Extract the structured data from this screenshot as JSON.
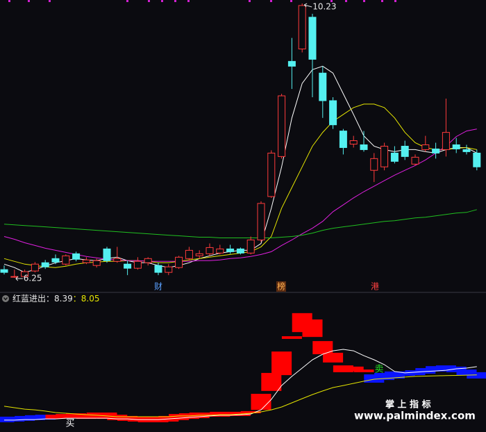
{
  "chart_data": [
    {
      "type": "candlestick",
      "categories": [
        null,
        null,
        null,
        null,
        null,
        null,
        null,
        null,
        null,
        null,
        null,
        null,
        null,
        null,
        null,
        null,
        null,
        null,
        null,
        null,
        null,
        null,
        null,
        null,
        null,
        null,
        null,
        null,
        null,
        null,
        null,
        null,
        null,
        null,
        null,
        null,
        null,
        null,
        null,
        null,
        null,
        null,
        null,
        null,
        null,
        null,
        null
      ],
      "open": [
        6.37,
        6.27,
        6.27,
        6.35,
        6.47,
        6.53,
        6.45,
        6.6,
        6.47,
        6.43,
        6.67,
        6.49,
        6.45,
        6.39,
        6.47,
        6.43,
        6.33,
        6.4,
        6.53,
        6.57,
        6.6,
        6.61,
        6.67,
        6.67,
        6.61,
        6.8,
        7.43,
        8.01,
        9.39,
        9.57,
        10.03,
        9.22,
        8.82,
        8.38,
        8.19,
        8.18,
        7.81,
        7.86,
        8.06,
        8.16,
        7.9,
        8.11,
        8.12,
        8.11,
        8.18,
        8.11,
        8.06
      ],
      "high": [
        6.43,
        6.37,
        6.37,
        6.48,
        6.51,
        6.59,
        6.59,
        6.63,
        6.55,
        6.53,
        6.7,
        6.7,
        6.5,
        6.55,
        6.55,
        6.47,
        6.45,
        6.57,
        6.7,
        6.65,
        6.75,
        6.73,
        6.73,
        6.69,
        6.85,
        7.36,
        8.1,
        8.92,
        9.73,
        10.23,
        10.08,
        9.32,
        8.87,
        8.41,
        8.31,
        8.38,
        8.06,
        8.21,
        8.16,
        8.24,
        8.04,
        8.31,
        8.21,
        8.85,
        8.28,
        8.18,
        8.11
      ],
      "low": [
        6.3,
        6.25,
        6.25,
        6.33,
        6.38,
        6.45,
        6.43,
        6.49,
        6.45,
        6.4,
        6.47,
        6.47,
        6.29,
        6.37,
        6.43,
        6.29,
        6.29,
        6.38,
        6.5,
        6.53,
        6.57,
        6.59,
        6.6,
        6.59,
        6.59,
        6.77,
        7.41,
        7.98,
        8.99,
        9.52,
        8.87,
        8.57,
        8.41,
        8.04,
        8.14,
        8.08,
        7.64,
        7.81,
        7.91,
        7.96,
        7.88,
        8.08,
        7.98,
        8.01,
        8.06,
        8.04,
        7.81
      ],
      "close": [
        6.33,
        6.27,
        6.34,
        6.45,
        6.41,
        6.48,
        6.57,
        6.52,
        6.51,
        6.5,
        6.5,
        6.53,
        6.39,
        6.49,
        6.53,
        6.33,
        6.41,
        6.55,
        6.65,
        6.6,
        6.69,
        6.67,
        6.63,
        6.61,
        6.8,
        7.33,
        8.06,
        8.89,
        9.32,
        10.2,
        9.42,
        8.82,
        8.47,
        8.14,
        8.24,
        8.11,
        7.98,
        8.16,
        7.94,
        8.01,
        8.0,
        8.18,
        8.06,
        8.36,
        8.12,
        8.08,
        7.86
      ],
      "up_color": "#ff3b3b",
      "down_color": "#54f0f0",
      "lines": [
        {
          "color": "#ffffff",
          "values": [
            6.45,
            6.4,
            6.33,
            6.37,
            6.42,
            6.47,
            6.5,
            6.53,
            6.51,
            6.5,
            6.53,
            6.55,
            6.5,
            6.47,
            6.47,
            6.43,
            6.4,
            6.43,
            6.47,
            6.53,
            6.57,
            6.61,
            6.63,
            6.65,
            6.65,
            6.75,
            7.26,
            7.86,
            8.57,
            9.07,
            9.27,
            9.32,
            9.22,
            8.92,
            8.62,
            8.31,
            8.16,
            8.11,
            8.08,
            8.11,
            8.11,
            8.08,
            8.06,
            8.11,
            8.14,
            8.14,
            8.06
          ]
        },
        {
          "color": "#e6e600",
          "values": [
            6.53,
            6.49,
            6.45,
            6.43,
            6.41,
            6.4,
            6.42,
            6.45,
            6.47,
            6.48,
            6.49,
            6.49,
            6.5,
            6.5,
            6.49,
            6.47,
            6.47,
            6.49,
            6.51,
            6.53,
            6.55,
            6.57,
            6.59,
            6.61,
            6.63,
            6.7,
            6.85,
            7.26,
            7.56,
            7.86,
            8.16,
            8.36,
            8.52,
            8.62,
            8.72,
            8.77,
            8.77,
            8.72,
            8.57,
            8.36,
            8.21,
            8.14,
            8.11,
            8.11,
            8.13,
            8.14,
            8.11
          ]
        },
        {
          "color": "#e020e0",
          "values": [
            6.85,
            6.81,
            6.76,
            6.72,
            6.68,
            6.65,
            6.62,
            6.59,
            6.56,
            6.54,
            6.52,
            6.51,
            6.5,
            6.5,
            6.49,
            6.49,
            6.49,
            6.49,
            6.49,
            6.5,
            6.5,
            6.51,
            6.53,
            6.54,
            6.56,
            6.59,
            6.63,
            6.72,
            6.8,
            6.89,
            6.97,
            7.07,
            7.21,
            7.31,
            7.41,
            7.5,
            7.58,
            7.66,
            7.74,
            7.81,
            7.88,
            7.96,
            8.06,
            8.16,
            8.3,
            8.38,
            8.41
          ]
        },
        {
          "color": "#20c020",
          "values": [
            7.03,
            7.02,
            7.01,
            7.0,
            6.99,
            6.98,
            6.97,
            6.96,
            6.95,
            6.94,
            6.93,
            6.92,
            6.91,
            6.9,
            6.89,
            6.88,
            6.87,
            6.86,
            6.85,
            6.84,
            6.84,
            6.83,
            6.83,
            6.83,
            6.83,
            6.83,
            6.83,
            6.84,
            6.85,
            6.87,
            6.9,
            6.94,
            6.97,
            6.99,
            7.01,
            7.03,
            7.05,
            7.07,
            7.08,
            7.1,
            7.12,
            7.13,
            7.15,
            7.17,
            7.19,
            7.2,
            7.24
          ]
        }
      ],
      "max_label": 10.23,
      "min_label": 6.25,
      "markers": [
        "财",
        "榜",
        "港"
      ],
      "ylim": [
        6.1,
        10.28
      ]
    },
    {
      "type": "block",
      "title": "红蓝进出",
      "separator": "：",
      "open": [
        6.33,
        6.33,
        6.36,
        6.39,
        6.41,
        6.24,
        6.27,
        6.27,
        6.24,
        6.27,
        6.24,
        6.19,
        6.16,
        6.13,
        6.1,
        6.1,
        6.13,
        6.19,
        6.24,
        6.27,
        6.33,
        6.33,
        6.36,
        6.36,
        6.47,
        6.61,
        7.39,
        8.04,
        9.53,
        9.81,
        9.61,
        8.9,
        8.56,
        8.16,
        8.21,
        8.16,
        8.07,
        8.13,
        8.19,
        8.19,
        8.24,
        8.33,
        8.41,
        8.44,
        8.39,
        8.27,
        8.16
      ],
      "close": [
        6.1,
        6.13,
        6.16,
        6.19,
        6.21,
        6.41,
        6.44,
        6.47,
        6.44,
        6.5,
        6.5,
        6.41,
        6.36,
        6.33,
        6.33,
        6.33,
        6.36,
        6.44,
        6.47,
        6.5,
        6.5,
        6.53,
        6.53,
        6.53,
        6.56,
        7.27,
        8.13,
        9.01,
        9.64,
        10.59,
        10.33,
        9.44,
        8.96,
        8.44,
        8.39,
        8.27,
        7.73,
        7.84,
        7.9,
        8.01,
        8.04,
        8.1,
        8.19,
        8.24,
        8.16,
        8.04,
        7.9
      ],
      "up_color": "#ff0000",
      "down_color": "#0a14ff",
      "lines": [
        {
          "color": "#ffffff",
          "values": [
            6.19,
            6.19,
            6.21,
            6.21,
            6.24,
            6.24,
            6.27,
            6.27,
            6.27,
            6.27,
            6.27,
            6.24,
            6.24,
            6.21,
            6.21,
            6.21,
            6.24,
            6.27,
            6.3,
            6.33,
            6.36,
            6.39,
            6.39,
            6.41,
            6.44,
            6.61,
            7.04,
            7.61,
            7.99,
            8.33,
            8.67,
            8.9,
            9.04,
            9.1,
            9.04,
            8.84,
            8.67,
            8.47,
            8.19,
            8.13,
            8.16,
            8.19,
            8.21,
            8.24,
            8.3,
            8.33,
            8.39
          ]
        },
        {
          "color": "#e6e600",
          "values": [
            6.76,
            6.7,
            6.64,
            6.61,
            6.56,
            6.5,
            6.47,
            6.44,
            6.41,
            6.39,
            6.36,
            6.33,
            6.33,
            6.33,
            6.33,
            6.33,
            6.33,
            6.36,
            6.36,
            6.39,
            6.39,
            6.41,
            6.41,
            6.44,
            6.47,
            6.53,
            6.61,
            6.73,
            6.9,
            7.07,
            7.24,
            7.39,
            7.53,
            7.61,
            7.7,
            7.79,
            7.87,
            7.9,
            7.93,
            7.96,
            7.99,
            8.0,
            8.01,
            8.02,
            8.03,
            8.04,
            8.05
          ]
        }
      ],
      "buy_label": "买",
      "sell_label": "卖",
      "ylim": [
        5.7,
        10.9
      ]
    }
  ],
  "watermark": {
    "title": "掌 上 指 标",
    "url": "www.palmindex.com"
  }
}
